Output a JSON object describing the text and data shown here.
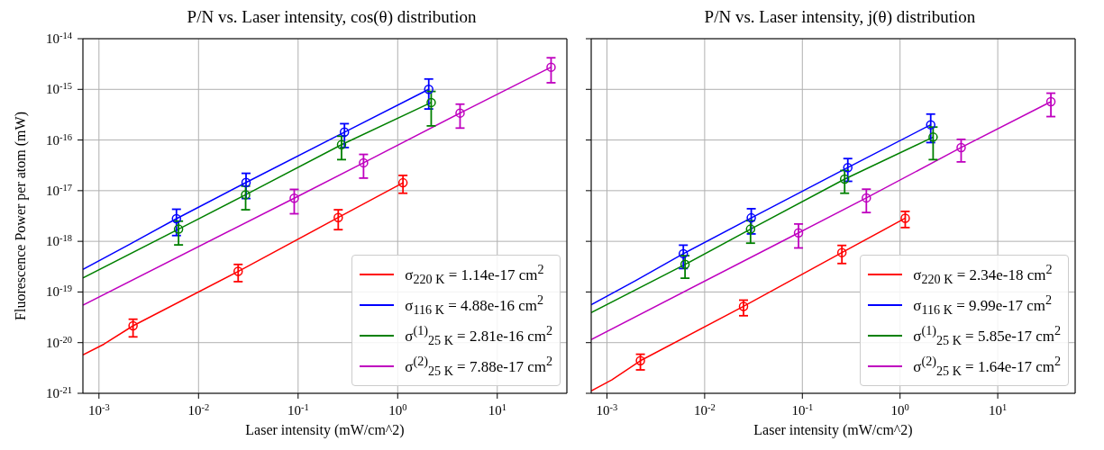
{
  "chart_data": [
    {
      "type": "line",
      "title": "P/N vs. Laser intensity, cos(θ) distribution",
      "xlabel": "Laser intensity (mW/cm^2)",
      "ylabel": "Fluorescence Power per atom (mW)",
      "log": "xy",
      "grid": true,
      "legend": "bottom right",
      "xlim": [
        0.00069,
        50
      ],
      "ylim": [
        1e-21,
        1e-14
      ],
      "xticks": [
        {
          "value": 0.001,
          "label": "10$^{-3}$"
        },
        {
          "value": 0.01,
          "label": "10$^{-2}$"
        },
        {
          "value": 0.1,
          "label": "10$^{-1}$"
        },
        {
          "value": 1,
          "label": "10$^{0}$"
        },
        {
          "value": 10,
          "label": "10$^{1}$"
        }
      ],
      "yticks": [
        {
          "value": 1e-21,
          "label": "10$^{-21}$"
        },
        {
          "value": 1e-20,
          "label": "10$^{-20}$"
        },
        {
          "value": 1e-19,
          "label": "10$^{-19}$"
        },
        {
          "value": 1e-18,
          "label": "10$^{-18}$"
        },
        {
          "value": 1e-17,
          "label": "10$^{-17}$"
        },
        {
          "value": 1e-16,
          "label": "10$^{-16}$"
        },
        {
          "value": 1e-15,
          "label": "10$^{-15}$"
        },
        {
          "value": 1e-14,
          "label": "10$^{-14}$"
        }
      ],
      "series": [
        {
          "type": "line",
          "marker": "none",
          "name": "σ$_{220 K}$ = 1.14e-17 cm$^{2}$",
          "color": "#ff0000",
          "x": [
            0.00069,
            0.00112,
            0.0022,
            0.025,
            0.253,
            1.13
          ],
          "values": [
            5.7e-21,
            9.3e-21,
            2.15e-20,
            2.55e-19,
            2.95e-18,
            1.43e-17
          ]
        },
        {
          "type": "line",
          "marker": "none",
          "name": "σ$_{116 K}$ = 4.88e-16 cm$^{2}$",
          "color": "#0000ff",
          "x": [
            0.00069,
            0.002,
            0.006,
            0.03,
            0.292,
            2.05
          ],
          "values": [
            2.8e-19,
            8.6e-19,
            2.8e-18,
            1.45e-17,
            1.43e-16,
            1e-15
          ]
        },
        {
          "type": "line",
          "marker": "none",
          "name": "σ$^{(1)}$$_{25 K}$ = 2.81e-16 cm$^{2}$",
          "color": "#008000",
          "x": [
            0.00069,
            0.0063,
            0.0297,
            0.273,
            2.17
          ],
          "values": [
            1.9e-19,
            1.74e-18,
            8.3e-18,
            8.1e-17,
            5.5e-16
          ]
        },
        {
          "type": "line",
          "marker": "none",
          "name": "σ$^{(2)}$$_{25 K}$ = 7.88e-17 cm$^{2}$",
          "color": "#bf00bf",
          "x": [
            0.00069,
            0.0914,
            0.454,
            4.23,
            34.7
          ],
          "values": [
            5.5e-20,
            7.1e-18,
            3.55e-17,
            3.4e-16,
            2.74e-15
          ]
        },
        {
          "type": "scatter",
          "marker": "circle",
          "color": "#ff0000",
          "x": [
            0.0022,
            0.025,
            0.253,
            1.13
          ],
          "values": [
            2.15e-20,
            2.55e-19,
            2.95e-18,
            1.43e-17
          ],
          "errors": [
            [
              1.3e-20,
              2.9e-20
            ],
            [
              1.6e-19,
              3.5e-19
            ],
            [
              1.7e-18,
              4.2e-18
            ],
            [
              8.9e-18,
              2e-17
            ]
          ]
        },
        {
          "type": "scatter",
          "marker": "circle",
          "color": "#0000ff",
          "x": [
            0.006,
            0.03,
            0.292,
            2.05
          ],
          "values": [
            2.8e-18,
            1.45e-17,
            1.43e-16,
            1e-15
          ],
          "errors": [
            [
              1.3e-18,
              4.3e-18
            ],
            [
              7e-18,
              2.2e-17
            ],
            [
              7.1e-17,
              2.1e-16
            ],
            [
              4.1e-16,
              1.6e-15
            ]
          ]
        },
        {
          "type": "scatter",
          "marker": "circle",
          "color": "#008000",
          "x": [
            0.0063,
            0.0297,
            0.273,
            2.17
          ],
          "values": [
            1.74e-18,
            8.3e-18,
            8.1e-17,
            5.5e-16
          ],
          "errors": [
            [
              8.5e-19,
              2.5e-18
            ],
            [
              4.2e-18,
              1.23e-17
            ],
            [
              4.1e-17,
              1.19e-16
            ],
            [
              1.9e-16,
              9.1e-16
            ]
          ]
        },
        {
          "type": "scatter",
          "marker": "circle",
          "color": "#bf00bf",
          "x": [
            0.0914,
            0.454,
            4.23,
            34.7
          ],
          "values": [
            7.1e-18,
            3.55e-17,
            3.4e-16,
            2.74e-15
          ],
          "errors": [
            [
              3.5e-18,
              1.06e-17
            ],
            [
              1.77e-17,
              5.2e-17
            ],
            [
              1.72e-16,
              5.1e-16
            ],
            [
              1.35e-15,
              4.2e-15
            ]
          ]
        }
      ]
    },
    {
      "type": "line",
      "title": "P/N vs. Laser intensity, j(θ) distribution",
      "xlabel": "Laser intensity (mW/cm^2)",
      "log": "xy",
      "grid": true,
      "legend": "bottom right",
      "tick_labels": "x",
      "xlim": [
        0.00069,
        62
      ],
      "ylim": [
        1e-21,
        1e-14
      ],
      "xticks": [
        {
          "value": 0.001,
          "label": "10$^{-3}$"
        },
        {
          "value": 0.01,
          "label": "10$^{-2}$"
        },
        {
          "value": 0.1,
          "label": "10$^{-1}$"
        },
        {
          "value": 1,
          "label": "10$^{0}$"
        },
        {
          "value": 10,
          "label": "10$^{1}$"
        }
      ],
      "yticks": [
        {
          "value": 1e-21,
          "label": null
        },
        {
          "value": 1e-20,
          "label": null
        },
        {
          "value": 1e-19,
          "label": null
        },
        {
          "value": 1e-18,
          "label": null
        },
        {
          "value": 1e-17,
          "label": null
        },
        {
          "value": 1e-16,
          "label": null
        },
        {
          "value": 1e-15,
          "label": null
        },
        {
          "value": 1e-14,
          "label": null
        }
      ],
      "series": [
        {
          "type": "line",
          "marker": "none",
          "name": "σ$_{220 K}$ = 2.34e-18 cm$^{2}$",
          "color": "#ff0000",
          "x": [
            0.00069,
            0.00112,
            0.0022,
            0.025,
            0.254,
            1.13
          ],
          "values": [
            1.12e-21,
            1.84e-21,
            4.4e-21,
            5.2e-20,
            6e-19,
            2.86e-18
          ]
        },
        {
          "type": "line",
          "marker": "none",
          "name": "σ$_{116 K}$ = 9.99e-17 cm$^{2}$",
          "color": "#0000ff",
          "x": [
            0.00069,
            0.00196,
            0.00605,
            0.03,
            0.292,
            2.06
          ],
          "values": [
            5.6e-20,
            1.67e-19,
            5.7e-19,
            2.9e-18,
            2.86e-17,
            2e-16
          ]
        },
        {
          "type": "line",
          "marker": "none",
          "name": "σ$^{(1)}$$_{25 K}$ = 5.85e-17 cm$^{2}$",
          "color": "#008000",
          "x": [
            0.00069,
            0.0063,
            0.0295,
            0.271,
            2.18
          ],
          "values": [
            3.9e-20,
            3.5e-19,
            1.74e-18,
            1.69e-17,
            1.14e-16
          ]
        },
        {
          "type": "line",
          "marker": "none",
          "name": "σ$^{(2)}$$_{25 K}$ = 1.64e-17 cm$^{2}$",
          "color": "#bf00bf",
          "x": [
            0.00069,
            0.0914,
            0.452,
            4.22,
            35
          ],
          "values": [
            1.15e-20,
            1.47e-18,
            7.2e-18,
            7.1e-17,
            5.7e-16
          ]
        },
        {
          "type": "scatter",
          "marker": "circle",
          "color": "#ff0000",
          "x": [
            0.0022,
            0.025,
            0.254,
            1.13
          ],
          "values": [
            4.4e-21,
            5.2e-20,
            6e-19,
            2.86e-18
          ],
          "errors": [
            [
              2.9e-21,
              5.9e-21
            ],
            [
              3.4e-20,
              6.9e-20
            ],
            [
              3.65e-19,
              8.3e-19
            ],
            [
              1.87e-18,
              3.9e-18
            ]
          ]
        },
        {
          "type": "scatter",
          "marker": "circle",
          "color": "#0000ff",
          "x": [
            0.00605,
            0.03,
            0.292,
            2.06
          ],
          "values": [
            5.7e-19,
            2.9e-18,
            2.86e-17,
            2e-16
          ],
          "errors": [
            [
              2.9e-19,
              8.4e-19
            ],
            [
              1.4e-18,
              4.4e-18
            ],
            [
              1.53e-17,
              4.3e-17
            ],
            [
              8.9e-17,
              3.25e-16
            ]
          ]
        },
        {
          "type": "scatter",
          "marker": "circle",
          "color": "#008000",
          "x": [
            0.0063,
            0.0295,
            0.271,
            2.18
          ],
          "values": [
            3.5e-19,
            1.74e-18,
            1.69e-17,
            1.14e-16
          ],
          "errors": [
            [
              1.87e-19,
              5.2e-19
            ],
            [
              9.2e-19,
              2.55e-18
            ],
            [
              8.9e-18,
              2.5e-17
            ],
            [
              4.1e-17,
              1.8e-16
            ]
          ]
        },
        {
          "type": "scatter",
          "marker": "circle",
          "color": "#bf00bf",
          "x": [
            0.0914,
            0.452,
            4.22,
            35
          ],
          "values": [
            1.47e-18,
            7.2e-18,
            7.1e-17,
            5.7e-16
          ],
          "errors": [
            [
              7.4e-19,
              2.2e-18
            ],
            [
              3.7e-18,
              1.07e-17
            ],
            [
              3.7e-17,
              1.03e-16
            ],
            [
              2.9e-16,
              8.4e-16
            ]
          ]
        }
      ]
    }
  ]
}
